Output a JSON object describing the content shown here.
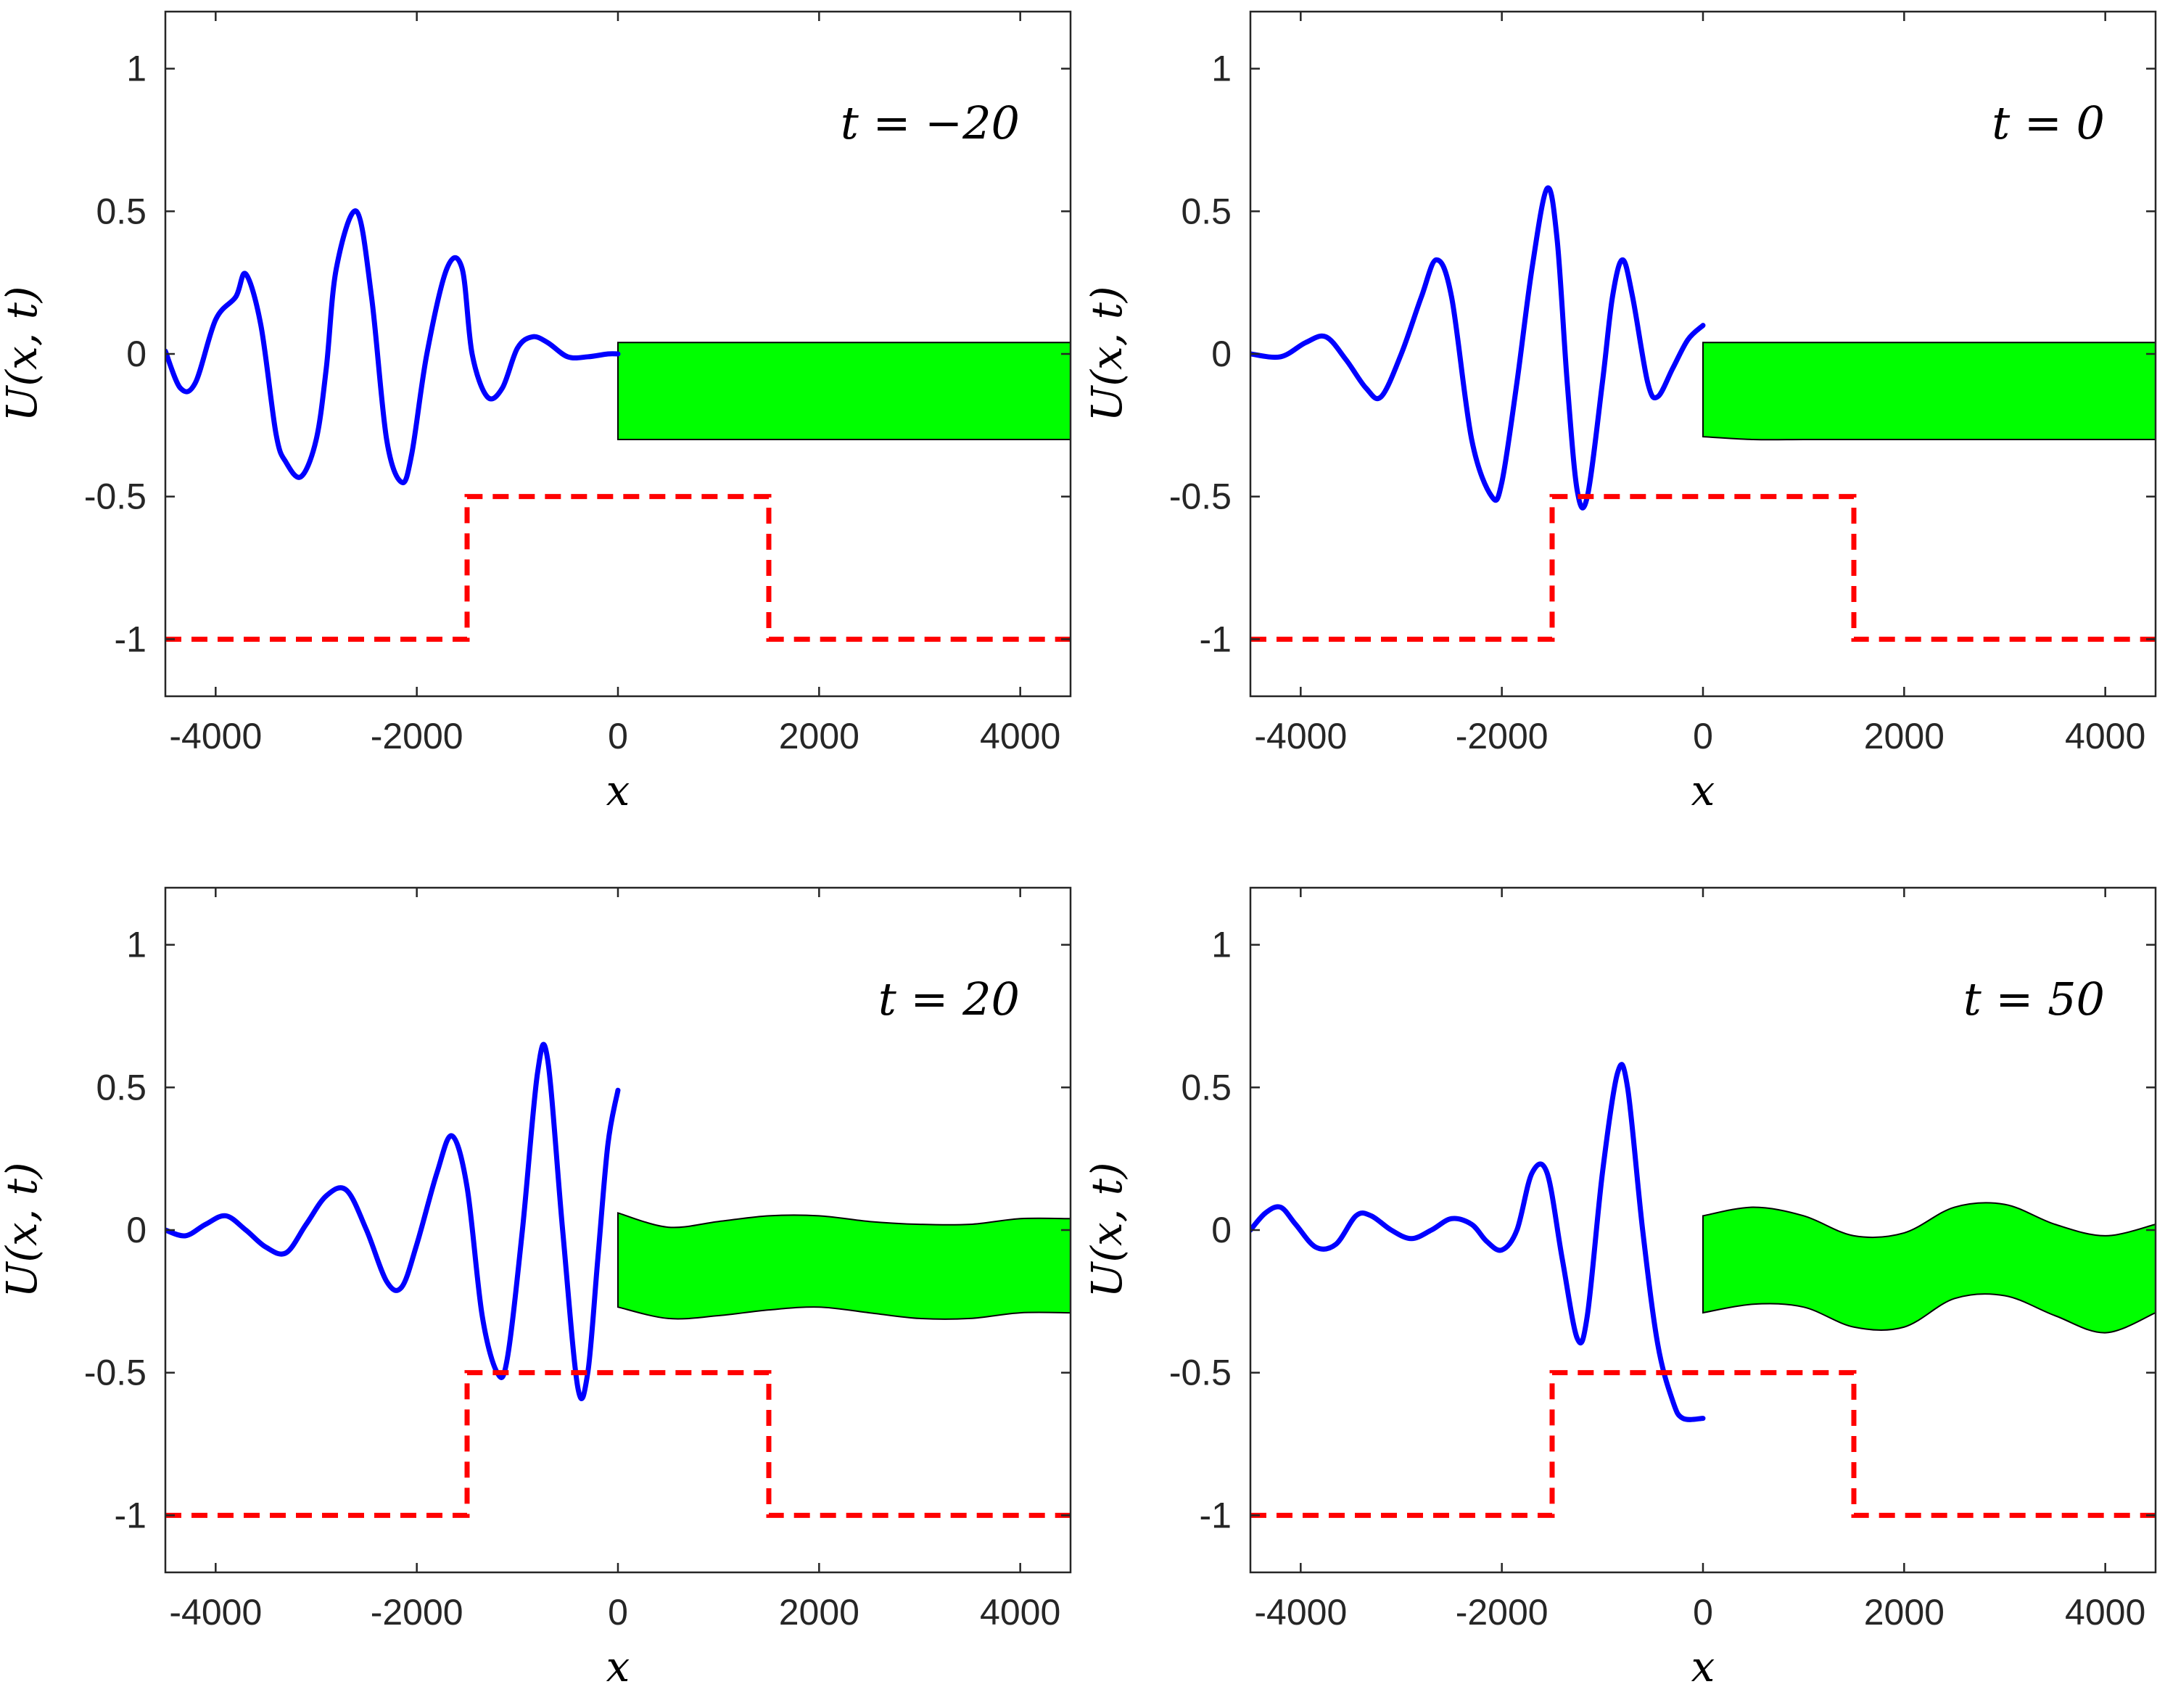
{
  "chart_data": [
    {
      "type": "line",
      "annotation": "t = −20",
      "xlabel": "x",
      "ylabel": "U(x, t)",
      "xlim": [
        -4500,
        4500
      ],
      "ylim": [
        -1.2,
        1.2
      ],
      "xticks": [
        -4000,
        -2000,
        0,
        2000,
        4000
      ],
      "xtick_labels": [
        "-4000",
        "-2000",
        "0",
        "2000",
        "4000"
      ],
      "yticks": [
        1,
        0.5,
        0,
        -0.5,
        -1
      ],
      "ytick_labels": [
        "1",
        "0.5",
        "0",
        "-0.5",
        "-1"
      ],
      "series": [
        {
          "name": "wave",
          "style": "solid",
          "color": "#0000ff",
          "points": [
            [
              -4500,
              0.01
            ],
            [
              -4350,
              -0.12
            ],
            [
              -4200,
              -0.1
            ],
            [
              -4000,
              0.12
            ],
            [
              -3800,
              0.2
            ],
            [
              -3700,
              0.28
            ],
            [
              -3550,
              0.1
            ],
            [
              -3400,
              -0.28
            ],
            [
              -3300,
              -0.38
            ],
            [
              -3150,
              -0.43
            ],
            [
              -3000,
              -0.3
            ],
            [
              -2900,
              -0.05
            ],
            [
              -2800,
              0.3
            ],
            [
              -2600,
              0.5
            ],
            [
              -2450,
              0.2
            ],
            [
              -2300,
              -0.3
            ],
            [
              -2150,
              -0.45
            ],
            [
              -2050,
              -0.35
            ],
            [
              -1900,
              0.0
            ],
            [
              -1700,
              0.3
            ],
            [
              -1550,
              0.3
            ],
            [
              -1450,
              0.0
            ],
            [
              -1300,
              -0.15
            ],
            [
              -1150,
              -0.12
            ],
            [
              -1000,
              0.02
            ],
            [
              -850,
              0.06
            ],
            [
              -700,
              0.04
            ],
            [
              -500,
              -0.01
            ],
            [
              -300,
              -0.01
            ],
            [
              -100,
              0.0
            ],
            [
              0,
              0.0
            ]
          ]
        },
        {
          "name": "step",
          "style": "dashed",
          "color": "#ff0000",
          "points": [
            [
              -4500,
              -1
            ],
            [
              -1500,
              -1
            ],
            [
              -1500,
              -0.5
            ],
            [
              1500,
              -0.5
            ],
            [
              1500,
              -1
            ],
            [
              4500,
              -1
            ]
          ]
        }
      ],
      "band": {
        "color": "#00ff00",
        "x": [
          0,
          500,
          1000,
          1500,
          2000,
          2500,
          3000,
          3500,
          4000,
          4500
        ],
        "upper": [
          0.04,
          0.04,
          0.04,
          0.04,
          0.04,
          0.04,
          0.04,
          0.04,
          0.04,
          0.04
        ],
        "lower": [
          -0.3,
          -0.3,
          -0.3,
          -0.3,
          -0.3,
          -0.3,
          -0.3,
          -0.3,
          -0.3,
          -0.3
        ]
      }
    },
    {
      "type": "line",
      "annotation": "t = 0",
      "xlabel": "x",
      "ylabel": "U(x, t)",
      "xlim": [
        -4500,
        4500
      ],
      "ylim": [
        -1.2,
        1.2
      ],
      "xticks": [
        -4000,
        -2000,
        0,
        2000,
        4000
      ],
      "xtick_labels": [
        "-4000",
        "-2000",
        "0",
        "2000",
        "4000"
      ],
      "yticks": [
        1,
        0.5,
        0,
        -0.5,
        -1
      ],
      "ytick_labels": [
        "1",
        "0.5",
        "0",
        "-0.5",
        "-1"
      ],
      "series": [
        {
          "name": "wave",
          "style": "solid",
          "color": "#0000ff",
          "points": [
            [
              -4500,
              0.0
            ],
            [
              -4200,
              -0.01
            ],
            [
              -3950,
              0.04
            ],
            [
              -3750,
              0.06
            ],
            [
              -3550,
              -0.02
            ],
            [
              -3350,
              -0.12
            ],
            [
              -3200,
              -0.15
            ],
            [
              -3000,
              0.0
            ],
            [
              -2800,
              0.2
            ],
            [
              -2650,
              0.33
            ],
            [
              -2500,
              0.2
            ],
            [
              -2300,
              -0.3
            ],
            [
              -2100,
              -0.5
            ],
            [
              -2000,
              -0.45
            ],
            [
              -1850,
              -0.1
            ],
            [
              -1700,
              0.3
            ],
            [
              -1550,
              0.58
            ],
            [
              -1450,
              0.4
            ],
            [
              -1350,
              -0.1
            ],
            [
              -1250,
              -0.48
            ],
            [
              -1150,
              -0.5
            ],
            [
              -1000,
              -0.1
            ],
            [
              -900,
              0.2
            ],
            [
              -800,
              0.33
            ],
            [
              -700,
              0.2
            ],
            [
              -550,
              -0.1
            ],
            [
              -450,
              -0.15
            ],
            [
              -300,
              -0.05
            ],
            [
              -150,
              0.05
            ],
            [
              0,
              0.1
            ]
          ]
        },
        {
          "name": "step",
          "style": "dashed",
          "color": "#ff0000",
          "points": [
            [
              -4500,
              -1
            ],
            [
              -1500,
              -1
            ],
            [
              -1500,
              -0.5
            ],
            [
              1500,
              -0.5
            ],
            [
              1500,
              -1
            ],
            [
              4500,
              -1
            ]
          ]
        }
      ],
      "band": {
        "color": "#00ff00",
        "x": [
          0,
          500,
          1000,
          1500,
          2000,
          2500,
          3000,
          3500,
          4000,
          4500
        ],
        "upper": [
          0.04,
          0.04,
          0.04,
          0.04,
          0.04,
          0.04,
          0.04,
          0.04,
          0.04,
          0.04
        ],
        "lower": [
          -0.29,
          -0.3,
          -0.3,
          -0.3,
          -0.3,
          -0.3,
          -0.3,
          -0.3,
          -0.3,
          -0.3
        ]
      }
    },
    {
      "type": "line",
      "annotation": "t = 20",
      "xlabel": "x",
      "ylabel": "U(x, t)",
      "xlim": [
        -4500,
        4500
      ],
      "ylim": [
        -1.2,
        1.2
      ],
      "xticks": [
        -4000,
        -2000,
        0,
        2000,
        4000
      ],
      "xtick_labels": [
        "-4000",
        "-2000",
        "0",
        "2000",
        "4000"
      ],
      "yticks": [
        1,
        0.5,
        0,
        -0.5,
        -1
      ],
      "ytick_labels": [
        "1",
        "0.5",
        "0",
        "-0.5",
        "-1"
      ],
      "series": [
        {
          "name": "wave",
          "style": "solid",
          "color": "#0000ff",
          "points": [
            [
              -4500,
              0.0
            ],
            [
              -4300,
              -0.02
            ],
            [
              -4100,
              0.02
            ],
            [
              -3900,
              0.05
            ],
            [
              -3700,
              0.0
            ],
            [
              -3500,
              -0.06
            ],
            [
              -3300,
              -0.08
            ],
            [
              -3100,
              0.02
            ],
            [
              -2900,
              0.12
            ],
            [
              -2700,
              0.14
            ],
            [
              -2500,
              0.0
            ],
            [
              -2300,
              -0.18
            ],
            [
              -2150,
              -0.2
            ],
            [
              -2000,
              -0.05
            ],
            [
              -1800,
              0.2
            ],
            [
              -1650,
              0.33
            ],
            [
              -1500,
              0.15
            ],
            [
              -1350,
              -0.3
            ],
            [
              -1200,
              -0.5
            ],
            [
              -1100,
              -0.45
            ],
            [
              -950,
              0.0
            ],
            [
              -800,
              0.55
            ],
            [
              -700,
              0.6
            ],
            [
              -550,
              0.0
            ],
            [
              -400,
              -0.55
            ],
            [
              -300,
              -0.5
            ],
            [
              -200,
              -0.1
            ],
            [
              -100,
              0.3
            ],
            [
              0,
              0.49
            ]
          ]
        },
        {
          "name": "step",
          "style": "dashed",
          "color": "#ff0000",
          "points": [
            [
              -4500,
              -1
            ],
            [
              -1500,
              -1
            ],
            [
              -1500,
              -0.5
            ],
            [
              1500,
              -0.5
            ],
            [
              1500,
              -1
            ],
            [
              4500,
              -1
            ]
          ]
        }
      ],
      "band": {
        "color": "#00ff00",
        "x": [
          0,
          500,
          1000,
          1500,
          2000,
          2500,
          3000,
          3500,
          4000,
          4500
        ],
        "upper": [
          0.06,
          0.01,
          0.03,
          0.05,
          0.05,
          0.03,
          0.02,
          0.02,
          0.04,
          0.04
        ],
        "lower": [
          -0.27,
          -0.31,
          -0.3,
          -0.28,
          -0.27,
          -0.29,
          -0.31,
          -0.31,
          -0.29,
          -0.29
        ]
      }
    },
    {
      "type": "line",
      "annotation": "t = 50",
      "xlabel": "x",
      "ylabel": "U(x, t)",
      "xlim": [
        -4500,
        4500
      ],
      "ylim": [
        -1.2,
        1.2
      ],
      "xticks": [
        -4000,
        -2000,
        0,
        2000,
        4000
      ],
      "xtick_labels": [
        "-4000",
        "-2000",
        "0",
        "2000",
        "4000"
      ],
      "yticks": [
        1,
        0.5,
        0,
        -0.5,
        -1
      ],
      "ytick_labels": [
        "1",
        "0.5",
        "0",
        "-0.5",
        "-1"
      ],
      "series": [
        {
          "name": "wave",
          "style": "solid",
          "color": "#0000ff",
          "points": [
            [
              -4500,
              0.0
            ],
            [
              -4350,
              0.06
            ],
            [
              -4200,
              0.08
            ],
            [
              -4050,
              0.02
            ],
            [
              -3850,
              -0.06
            ],
            [
              -3650,
              -0.05
            ],
            [
              -3450,
              0.05
            ],
            [
              -3300,
              0.05
            ],
            [
              -3100,
              0.0
            ],
            [
              -2900,
              -0.03
            ],
            [
              -2700,
              0.0
            ],
            [
              -2500,
              0.04
            ],
            [
              -2300,
              0.02
            ],
            [
              -2150,
              -0.04
            ],
            [
              -2000,
              -0.07
            ],
            [
              -1850,
              0.0
            ],
            [
              -1700,
              0.2
            ],
            [
              -1550,
              0.2
            ],
            [
              -1400,
              -0.1
            ],
            [
              -1250,
              -0.38
            ],
            [
              -1150,
              -0.3
            ],
            [
              -1000,
              0.2
            ],
            [
              -850,
              0.55
            ],
            [
              -750,
              0.5
            ],
            [
              -600,
              0.0
            ],
            [
              -450,
              -0.4
            ],
            [
              -300,
              -0.6
            ],
            [
              -200,
              -0.66
            ],
            [
              0,
              -0.66
            ]
          ]
        },
        {
          "name": "step",
          "style": "dashed",
          "color": "#ff0000",
          "points": [
            [
              -4500,
              -1
            ],
            [
              -1500,
              -1
            ],
            [
              -1500,
              -0.5
            ],
            [
              1500,
              -0.5
            ],
            [
              1500,
              -1
            ],
            [
              4500,
              -1
            ]
          ]
        }
      ],
      "band": {
        "color": "#00ff00",
        "x": [
          0,
          500,
          1000,
          1500,
          2000,
          2500,
          3000,
          3500,
          4000,
          4500
        ],
        "upper": [
          0.05,
          0.08,
          0.05,
          -0.02,
          -0.01,
          0.08,
          0.09,
          0.02,
          -0.02,
          0.02
        ],
        "lower": [
          -0.29,
          -0.26,
          -0.27,
          -0.34,
          -0.34,
          -0.24,
          -0.23,
          -0.3,
          -0.36,
          -0.29
        ]
      }
    }
  ]
}
